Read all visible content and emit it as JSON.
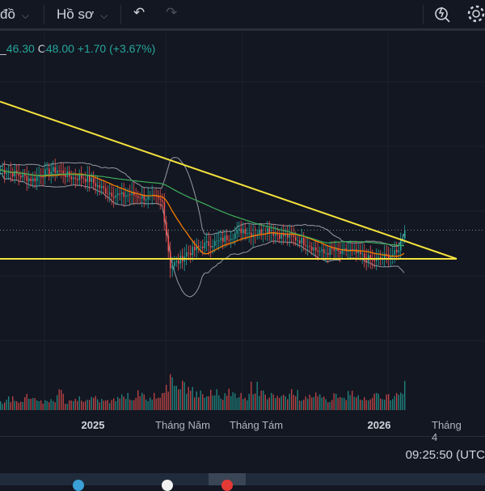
{
  "toolbar": {
    "chart_menu": "đồ",
    "profile_menu": "Hồ sơ",
    "undo": "undo-icon",
    "redo": "redo-icon"
  },
  "legend": {
    "low_prefix": "_",
    "low": "46.30",
    "close_prefix": "C",
    "close": "48.00",
    "change": "+1.70 (+3.67%)"
  },
  "colors": {
    "up": "#26a69a",
    "down": "#ef5350",
    "trend": "#f5e23c",
    "ma_orange": "#f57c00",
    "ma_green": "#3fae5a",
    "band": "#9598a1",
    "bg": "#131722"
  },
  "chart_data": {
    "type": "candlestick",
    "closes": [
      54.7,
      54.5,
      54.2,
      53.9,
      53.6,
      54.2,
      54.5,
      54.7,
      54.2,
      53.8,
      53.9,
      53.6,
      52.9,
      52.4,
      52.0,
      51.8,
      52.0,
      51.8,
      51.6,
      51.5,
      51.1,
      44.0,
      44.5,
      45.4,
      45.8,
      46.3,
      46.5,
      46.7,
      47.2,
      47.6,
      48.1,
      47.6,
      47.8,
      48.1,
      47.6,
      47.4,
      47.2,
      46.9,
      46.5,
      45.8,
      45.4,
      45.8,
      45.4,
      45.8,
      45.4,
      45.0,
      44.6,
      44.8,
      45.2,
      45.4,
      48.0
    ],
    "volumes": [
      3,
      4,
      3,
      5,
      4,
      3,
      4,
      6,
      3,
      4,
      3,
      5,
      4,
      3,
      4,
      5,
      4,
      6,
      4,
      5,
      8,
      12,
      9,
      7,
      6,
      5,
      6,
      5,
      7,
      6,
      5,
      8,
      6,
      5,
      4,
      5,
      6,
      4,
      5,
      5,
      4,
      5,
      4,
      6,
      5,
      4,
      6,
      5,
      5,
      6,
      9
    ],
    "ylim": [
      35.8,
      66.4
    ],
    "last_price": 48.0,
    "trendlines": [
      {
        "from": [
          0,
          62.3
        ],
        "to": [
          56.5,
          44.8
        ]
      },
      {
        "from": [
          0,
          44.8
        ],
        "to": [
          56.5,
          44.8
        ]
      }
    ],
    "x_ticks": [
      {
        "label": "2025",
        "bold": true
      },
      {
        "label": "Tháng Năm",
        "bold": false
      },
      {
        "label": "Tháng Tám",
        "bold": false
      },
      {
        "label": "2026",
        "bold": true
      },
      {
        "label": "Tháng 4",
        "bold": false
      }
    ]
  },
  "status": {
    "time": "09:25:50 (UTC"
  }
}
